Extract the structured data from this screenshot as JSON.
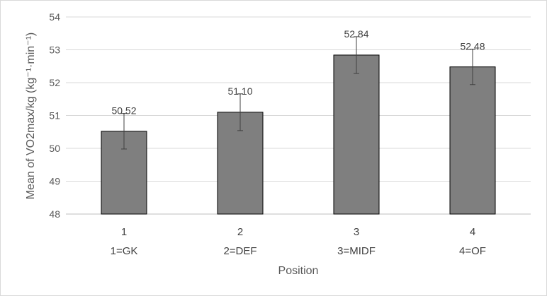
{
  "chart_data": {
    "type": "bar",
    "categories": [
      "1",
      "2",
      "3",
      "4"
    ],
    "category_groups": [
      "1=GK",
      "2=DEF",
      "3=MIDF",
      "4=OF"
    ],
    "values": [
      50.52,
      51.1,
      52.84,
      52.48
    ],
    "data_labels": [
      "50.52",
      "51.10",
      "52.84",
      "52.48"
    ],
    "error": [
      0.54,
      0.56,
      0.56,
      0.54
    ],
    "xlabel": "Position",
    "ylabel": "Mean of VO2max/kg  (kg⁻¹·min⁻¹)",
    "ylim": [
      48,
      54
    ],
    "yticks": [
      48,
      49,
      50,
      51,
      52,
      53,
      54
    ],
    "grid": true,
    "colors": {
      "bar": "#7f7f7f",
      "bar_edge": "#000000",
      "grid": "#d9d9d9",
      "error_bar": "#404040"
    }
  }
}
